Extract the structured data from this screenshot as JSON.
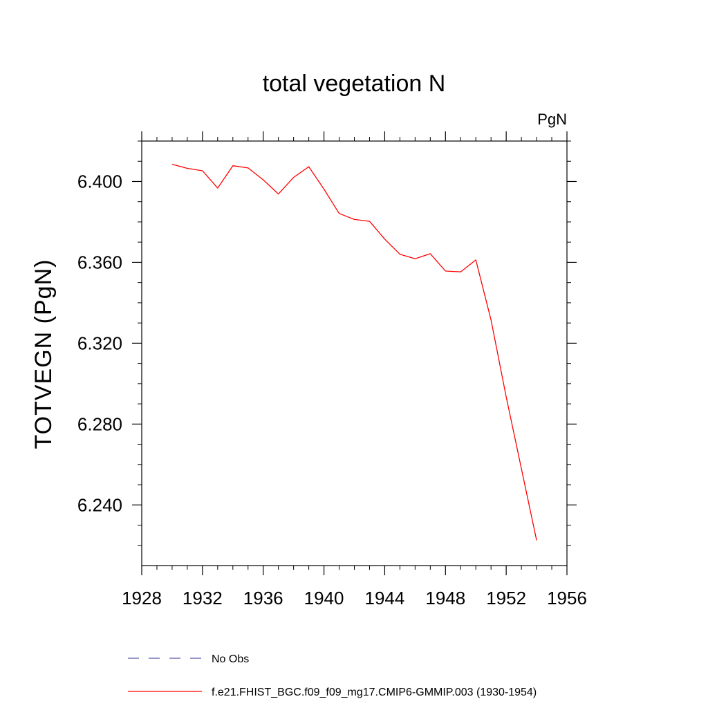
{
  "chart_data": {
    "type": "line",
    "title": "total vegetation N",
    "units": "PgN",
    "ylabel": "TOTVEGN  (PgN)",
    "xlabel": "",
    "xlim": [
      1928,
      1956
    ],
    "ylim": [
      6.21,
      6.42
    ],
    "xticks": [
      "1928",
      "1932",
      "1936",
      "1940",
      "1944",
      "1948",
      "1952",
      "1956"
    ],
    "yticks": [
      "6.240",
      "6.280",
      "6.320",
      "6.360",
      "6.400"
    ],
    "grid": false,
    "legend_position": "bottom",
    "series": [
      {
        "name": "f.e21.FHIST_BGC.f09_f09_mg17.CMIP6-GMMIP.003 (1930-1954)",
        "color": "#ff0000",
        "style": "solid",
        "x": [
          1930,
          1931,
          1932,
          1933,
          1934,
          1935,
          1936,
          1937,
          1938,
          1939,
          1940,
          1941,
          1942,
          1943,
          1944,
          1945,
          1946,
          1947,
          1948,
          1949,
          1950,
          1951,
          1952,
          1953,
          1954
        ],
        "y": [
          6.4085,
          6.4065,
          6.4053,
          6.3967,
          6.4078,
          6.4067,
          6.4008,
          6.3938,
          6.402,
          6.4073,
          6.3962,
          6.3842,
          6.3812,
          6.3803,
          6.3715,
          6.364,
          6.3618,
          6.3643,
          6.3557,
          6.3553,
          6.3612,
          6.3315,
          6.2935,
          6.258,
          6.2225
        ]
      }
    ],
    "legend": [
      {
        "label": "No Obs",
        "color": "#5b5ba8",
        "style": "dashed"
      },
      {
        "label": "f.e21.FHIST_BGC.f09_f09_mg17.CMIP6-GMMIP.003 (1930-1954)",
        "color": "#ff0000",
        "style": "solid"
      }
    ]
  }
}
